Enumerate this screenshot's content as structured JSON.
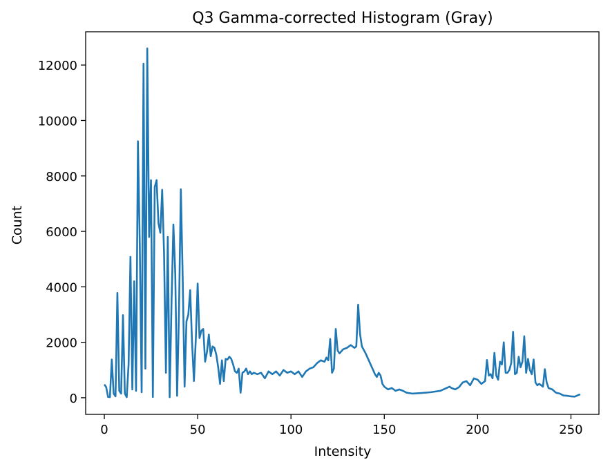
{
  "chart_data": {
    "type": "line",
    "title": "Q3 Gamma-corrected Histogram (Gray)",
    "xlabel": "Intensity",
    "ylabel": "Count",
    "xlim": [
      -10,
      265
    ],
    "ylim": [
      -600,
      13200
    ],
    "xticks": [
      0,
      50,
      100,
      150,
      200,
      250
    ],
    "yticks": [
      0,
      2000,
      4000,
      6000,
      8000,
      10000,
      12000
    ],
    "grid": false,
    "series": [
      {
        "color": "#1f77b4",
        "x": [
          0,
          1,
          2,
          3,
          4,
          5,
          6,
          7,
          8,
          9,
          10,
          11,
          12,
          13,
          14,
          15,
          16,
          17,
          18,
          19,
          20,
          21,
          22,
          23,
          24,
          25,
          26,
          27,
          28,
          29,
          30,
          31,
          32,
          33,
          34,
          35,
          36,
          37,
          38,
          39,
          40,
          41,
          42,
          43,
          44,
          45,
          46,
          47,
          48,
          49,
          50,
          51,
          52,
          53,
          54,
          55,
          56,
          57,
          58,
          59,
          60,
          61,
          62,
          63,
          64,
          65,
          66,
          67,
          68,
          69,
          70,
          71,
          72,
          73,
          74,
          75,
          76,
          77,
          78,
          79,
          80,
          82,
          84,
          86,
          88,
          90,
          92,
          94,
          96,
          98,
          100,
          102,
          104,
          106,
          108,
          110,
          112,
          114,
          116,
          118,
          119,
          120,
          121,
          122,
          123,
          124,
          125,
          126,
          128,
          130,
          132,
          134,
          135,
          136,
          137,
          138,
          140,
          142,
          144,
          145,
          146,
          147,
          148,
          149,
          150,
          152,
          154,
          156,
          158,
          160,
          162,
          165,
          170,
          175,
          180,
          185,
          186,
          188,
          190,
          192,
          194,
          196,
          198,
          200,
          202,
          204,
          205,
          206,
          207,
          208,
          209,
          210,
          211,
          212,
          213,
          214,
          215,
          216,
          217,
          218,
          219,
          220,
          221,
          222,
          223,
          224,
          225,
          226,
          227,
          228,
          229,
          230,
          231,
          232,
          233,
          234,
          235,
          236,
          237,
          238,
          240,
          242,
          244,
          246,
          248,
          250,
          252,
          254,
          255
        ],
        "y": [
          480,
          380,
          30,
          20,
          1380,
          150,
          50,
          3780,
          250,
          150,
          2980,
          150,
          20,
          1200,
          5080,
          300,
          4200,
          250,
          9250,
          5500,
          200,
          12050,
          1050,
          12600,
          5800,
          7850,
          30,
          7600,
          7850,
          6300,
          5950,
          7500,
          5200,
          900,
          5800,
          20,
          3400,
          6250,
          4500,
          70,
          3100,
          7520,
          4300,
          400,
          2750,
          3000,
          3880,
          2000,
          600,
          2100,
          4120,
          2150,
          2420,
          2480,
          1300,
          1650,
          2280,
          1500,
          1850,
          1800,
          1550,
          1100,
          500,
          1350,
          600,
          1400,
          1380,
          1480,
          1400,
          1200,
          950,
          900,
          1050,
          180,
          900,
          950,
          1050,
          850,
          950,
          850,
          900,
          850,
          900,
          700,
          950,
          850,
          950,
          800,
          1000,
          900,
          950,
          850,
          950,
          750,
          950,
          1050,
          1100,
          1250,
          1350,
          1300,
          1450,
          1350,
          2120,
          900,
          1050,
          2480,
          1700,
          1600,
          1750,
          1800,
          1900,
          1800,
          1850,
          3360,
          2300,
          1850,
          1600,
          1300,
          1000,
          850,
          750,
          900,
          800,
          500,
          400,
          300,
          350,
          250,
          300,
          250,
          180,
          150,
          170,
          200,
          250,
          400,
          350,
          300,
          380,
          550,
          600,
          450,
          700,
          650,
          500,
          600,
          1360,
          800,
          850,
          700,
          1620,
          800,
          650,
          1300,
          1200,
          2000,
          900,
          900,
          1000,
          1250,
          2380,
          850,
          900,
          1480,
          1100,
          1300,
          2220,
          900,
          1400,
          1000,
          850,
          1380,
          550,
          450,
          500,
          450,
          400,
          1030,
          550,
          350,
          300,
          180,
          150,
          80,
          70,
          50,
          40,
          100,
          120
        ]
      }
    ]
  }
}
